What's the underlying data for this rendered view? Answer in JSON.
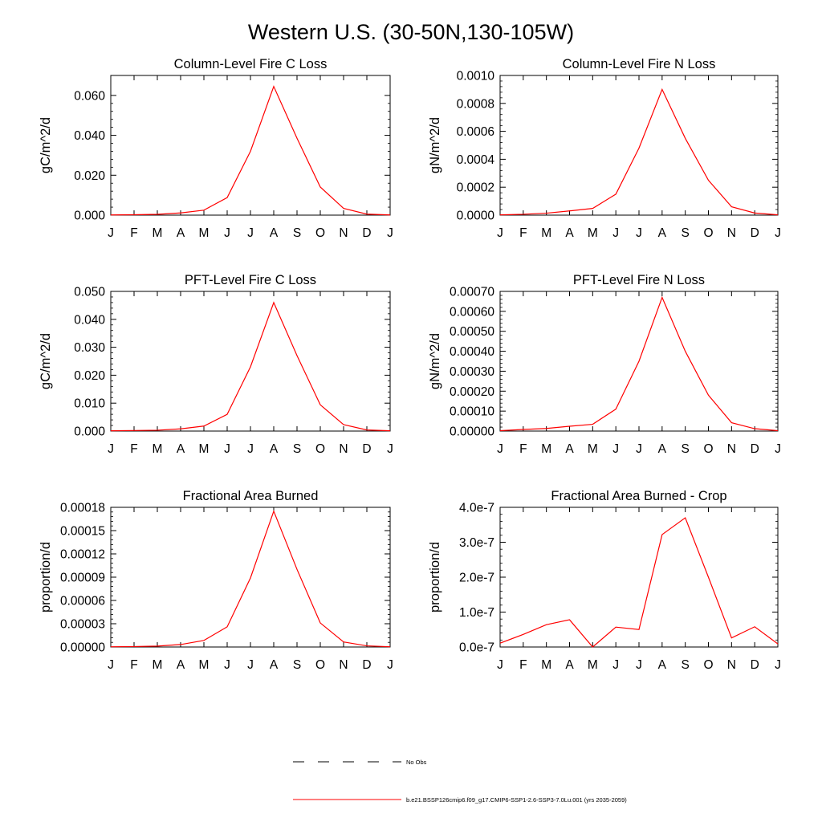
{
  "figure": {
    "title": "Western U.S. (30-50N,130-105W)"
  },
  "legend": {
    "entries": [
      {
        "label": "No Obs",
        "color": "#000000",
        "style": "dashed"
      },
      {
        "label": "b.e21.BSSP126cmip6.f09_g17.CMIP6-SSP1-2.6-SSP3-7.0Lu.001 (yrs 2035-2059)",
        "color": "#ff0000",
        "style": "solid"
      }
    ]
  },
  "colors": {
    "model_line": "#ff0000",
    "axes": "#000000"
  },
  "chart_data": [
    {
      "type": "line",
      "title": "Column-Level Fire C Loss",
      "ylabel": "gC/m^2/d",
      "categories": [
        "J",
        "F",
        "M",
        "A",
        "M",
        "J",
        "J",
        "A",
        "S",
        "O",
        "N",
        "D",
        "J"
      ],
      "ylim": [
        0,
        0.07
      ],
      "yticks": [
        0,
        0.02,
        0.04,
        0.06
      ],
      "ytick_labels": [
        "0.000",
        "0.020",
        "0.040",
        "0.060"
      ],
      "series": [
        {
          "values": [
            0.0001,
            0.0002,
            0.0004,
            0.0011,
            0.0025,
            0.0088,
            0.032,
            0.0645,
            0.0385,
            0.0141,
            0.0034,
            0.0005,
            0.0001
          ]
        }
      ]
    },
    {
      "type": "line",
      "title": "Column-Level Fire N Loss",
      "ylabel": "gN/m^2/d",
      "categories": [
        "J",
        "F",
        "M",
        "A",
        "M",
        "J",
        "J",
        "A",
        "S",
        "O",
        "N",
        "D",
        "J"
      ],
      "ylim": [
        0,
        0.001
      ],
      "yticks": [
        0,
        0.0002,
        0.0004,
        0.0006,
        0.0008,
        0.001
      ],
      "ytick_labels": [
        "0.0000",
        "0.0002",
        "0.0004",
        "0.0006",
        "0.0008",
        "0.0010"
      ],
      "series": [
        {
          "values": [
            2e-06,
            6e-06,
            1.4e-05,
            3e-05,
            4.8e-05,
            0.00015,
            0.00048,
            0.0009,
            0.00055,
            0.00025,
            6e-05,
            1.5e-05,
            2e-06
          ]
        }
      ]
    },
    {
      "type": "line",
      "title": "PFT-Level Fire C Loss",
      "ylabel": "gC/m^2/d",
      "categories": [
        "J",
        "F",
        "M",
        "A",
        "M",
        "J",
        "J",
        "A",
        "S",
        "O",
        "N",
        "D",
        "J"
      ],
      "ylim": [
        0,
        0.05
      ],
      "yticks": [
        0,
        0.01,
        0.02,
        0.03,
        0.04,
        0.05
      ],
      "ytick_labels": [
        "0.000",
        "0.010",
        "0.020",
        "0.030",
        "0.040",
        "0.050"
      ],
      "series": [
        {
          "values": [
            0.0001,
            0.0002,
            0.0003,
            0.0008,
            0.0018,
            0.006,
            0.023,
            0.046,
            0.027,
            0.0094,
            0.0023,
            0.0004,
            0.0001
          ]
        }
      ]
    },
    {
      "type": "line",
      "title": "PFT-Level Fire N Loss",
      "ylabel": "gN/m^2/d",
      "categories": [
        "J",
        "F",
        "M",
        "A",
        "M",
        "J",
        "J",
        "A",
        "S",
        "O",
        "N",
        "D",
        "J"
      ],
      "ylim": [
        0,
        0.0007
      ],
      "yticks": [
        0,
        0.0001,
        0.0002,
        0.0003,
        0.0004,
        0.0005,
        0.0006,
        0.0007
      ],
      "ytick_labels": [
        "0.00000",
        "0.00010",
        "0.00020",
        "0.00030",
        "0.00040",
        "0.00050",
        "0.00060",
        "0.00070"
      ],
      "series": [
        {
          "values": [
            2e-06,
            8e-06,
            1.3e-05,
            2.4e-05,
            3.4e-05,
            0.00011,
            0.00035,
            0.00067,
            0.0004,
            0.00018,
            4.2e-05,
            1.2e-05,
            2e-06
          ]
        }
      ]
    },
    {
      "type": "line",
      "title": "Fractional Area Burned",
      "ylabel": "proportion/d",
      "categories": [
        "J",
        "F",
        "M",
        "A",
        "M",
        "J",
        "J",
        "A",
        "S",
        "O",
        "N",
        "D",
        "J"
      ],
      "ylim": [
        0,
        0.00018
      ],
      "yticks": [
        0,
        3e-05,
        6e-05,
        9e-05,
        0.00012,
        0.00015,
        0.00018
      ],
      "ytick_labels": [
        "0.00000",
        "0.00003",
        "0.00006",
        "0.00009",
        "0.00012",
        "0.00015",
        "0.00018"
      ],
      "series": [
        {
          "values": [
            3e-07,
            6e-07,
            1.2e-06,
            3.2e-06,
            8.5e-06,
            2.6e-05,
            8.9e-05,
            0.000175,
            0.0001,
            3.1e-05,
            6.5e-06,
            1.5e-06,
            3e-07
          ]
        }
      ]
    },
    {
      "type": "line",
      "title": "Fractional Area Burned - Crop",
      "ylabel": "proportion/d",
      "categories": [
        "J",
        "F",
        "M",
        "A",
        "M",
        "J",
        "J",
        "A",
        "S",
        "O",
        "N",
        "D",
        "J"
      ],
      "ylim": [
        0,
        4e-07
      ],
      "yticks": [
        0,
        1e-07,
        2e-07,
        3e-07,
        4e-07
      ],
      "ytick_labels": [
        "0.0e-7",
        "1.0e-7",
        "2.0e-7",
        "3.0e-7",
        "4.0e-7"
      ],
      "series": [
        {
          "values": [
            1.1e-08,
            3.6e-08,
            6.4e-08,
            7.8e-08,
            0,
            5.7e-08,
            5e-08,
            3.22e-07,
            3.7e-07,
            2e-07,
            2.6e-08,
            5.8e-08,
            9e-09
          ]
        }
      ]
    }
  ]
}
